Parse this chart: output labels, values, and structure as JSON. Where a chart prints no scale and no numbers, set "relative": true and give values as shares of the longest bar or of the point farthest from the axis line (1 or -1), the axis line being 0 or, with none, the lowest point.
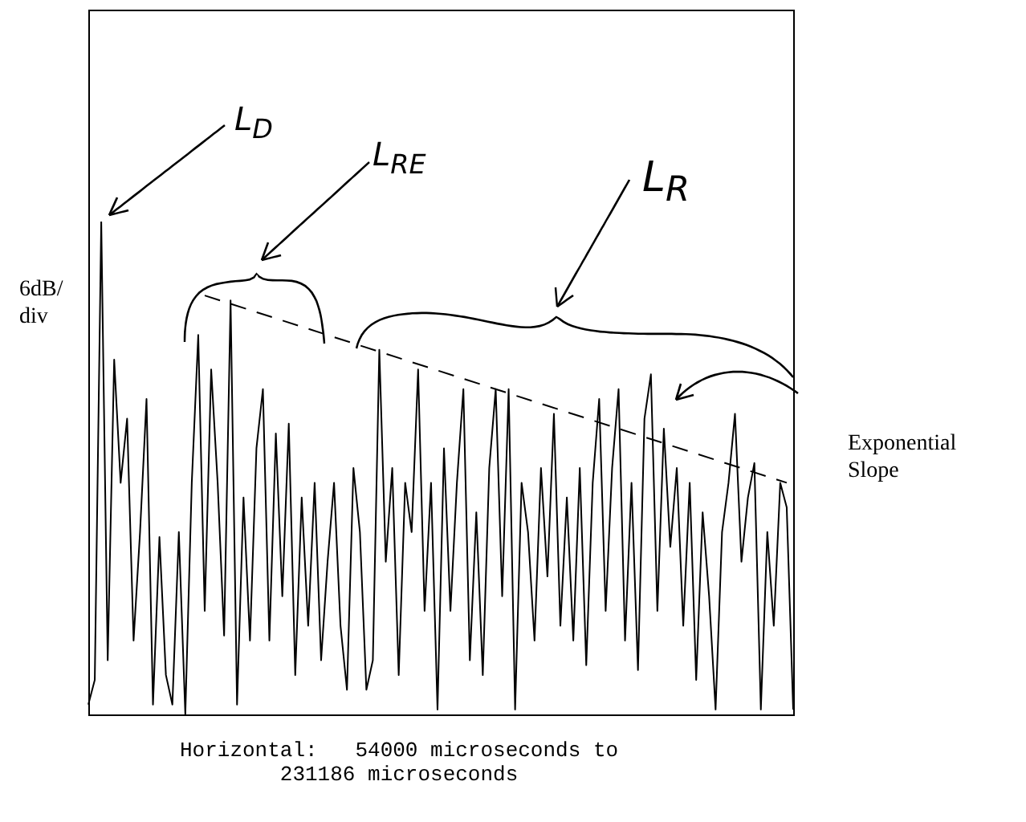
{
  "chart_data": {
    "type": "line",
    "relative": true,
    "categories": [
      null,
      null,
      null,
      null,
      null,
      null,
      null,
      null,
      null,
      null,
      null,
      null,
      null,
      null,
      null,
      null,
      null,
      null,
      null,
      null,
      null,
      null,
      null,
      null,
      null,
      null,
      null,
      null,
      null,
      null,
      null,
      null,
      null,
      null,
      null,
      null,
      null,
      null,
      null,
      null,
      null,
      null,
      null,
      null,
      null,
      null,
      null,
      null,
      null,
      null,
      null,
      null,
      null,
      null,
      null,
      null,
      null,
      null,
      null,
      null,
      null,
      null,
      null,
      null,
      null,
      null,
      null,
      null,
      null,
      null,
      null,
      null,
      null,
      null,
      null,
      null,
      null,
      null,
      null,
      null,
      null,
      null,
      null,
      null,
      null,
      null,
      null,
      null,
      null,
      null,
      null,
      null,
      null,
      null,
      null,
      null,
      null,
      null,
      null,
      null,
      null,
      null,
      null,
      null,
      null,
      null,
      null,
      null,
      null,
      null
    ],
    "series": [
      {
        "color": "#000000",
        "values": [
          0.02,
          0.07,
          1,
          0.11,
          0.72,
          0.47,
          0.6,
          0.15,
          0.37,
          0.64,
          0.02,
          0.36,
          0.08,
          0.02,
          0.37,
          0,
          0.47,
          0.77,
          0.21,
          0.7,
          0.47,
          0.16,
          0.84,
          0.02,
          0.44,
          0.15,
          0.54,
          0.66,
          0.15,
          0.57,
          0.24,
          0.59,
          0.08,
          0.44,
          0.18,
          0.47,
          0.11,
          0.31,
          0.47,
          0.18,
          0.05,
          0.5,
          0.37,
          0.05,
          0.11,
          0.74,
          0.31,
          0.5,
          0.08,
          0.47,
          0.37,
          0.7,
          0.21,
          0.47,
          0.01,
          0.54,
          0.21,
          0.47,
          0.66,
          0.11,
          0.41,
          0.08,
          0.5,
          0.66,
          0.24,
          0.66,
          0.01,
          0.47,
          0.37,
          0.15,
          0.5,
          0.28,
          0.61,
          0.18,
          0.44,
          0.15,
          0.5,
          0.1,
          0.47,
          0.64,
          0.21,
          0.5,
          0.66,
          0.15,
          0.47,
          0.09,
          0.6,
          0.69,
          0.21,
          0.58,
          0.34,
          0.5,
          0.18,
          0.47,
          0.07,
          0.41,
          0.24,
          0.01,
          0.37,
          0.47,
          0.61,
          0.31,
          0.44,
          0.51,
          0.01,
          0.37,
          0.18,
          0.47,
          0.42,
          0.01
        ]
      },
      {
        "color": "#000000",
        "line_style": "dashed",
        "values": [
          null,
          null,
          null,
          null,
          null,
          null,
          null,
          null,
          null,
          null,
          null,
          null,
          null,
          null,
          null,
          null,
          null,
          null,
          0.85,
          null,
          null,
          null,
          null,
          null,
          null,
          null,
          null,
          null,
          null,
          null,
          null,
          null,
          null,
          null,
          null,
          null,
          null,
          null,
          null,
          null,
          null,
          null,
          null,
          null,
          null,
          null,
          null,
          null,
          null,
          null,
          null,
          null,
          null,
          null,
          null,
          null,
          null,
          null,
          null,
          null,
          null,
          null,
          null,
          null,
          null,
          null,
          null,
          null,
          null,
          null,
          null,
          null,
          null,
          null,
          null,
          null,
          null,
          null,
          null,
          null,
          null,
          null,
          null,
          null,
          null,
          null,
          null,
          null,
          null,
          null,
          null,
          null,
          null,
          null,
          null,
          null,
          null,
          null,
          null,
          null,
          null,
          null,
          null,
          null,
          null,
          null,
          null,
          null,
          0.47,
          null
        ]
      }
    ],
    "annotations": [
      "L$_{D}$",
      "L$_{RE}$",
      "L$_{R}$",
      "6dB/\ndiv",
      "Exponential\nSlope",
      "Horizontal:   54000 microseconds to\n231186 microseconds"
    ]
  }
}
